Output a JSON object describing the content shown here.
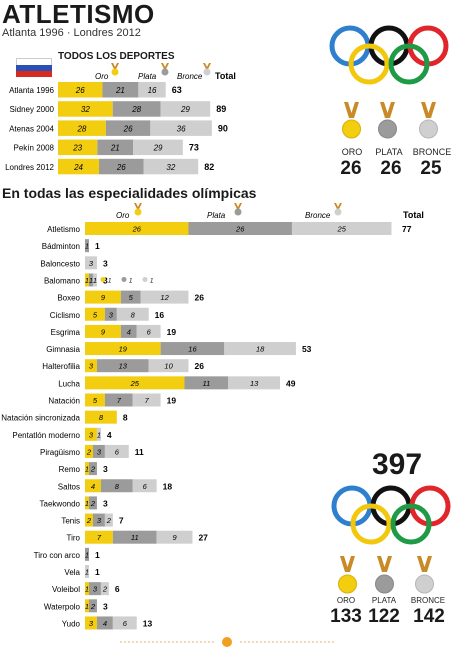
{
  "header": {
    "title": "ATLETISMO",
    "subtitle": "Atlanta 1996 · Londres 2012"
  },
  "colors": {
    "gold": "#f2cd10",
    "silver": "#9b9b9b",
    "bronze": "#cfcfcf",
    "medal_ribbon": "#c98a28"
  },
  "top": {
    "title": "TODOS LOS DEPORTES",
    "legend": {
      "oro": "Oro",
      "plata": "Plata",
      "bronce": "Bronce",
      "total": "Total"
    }
  },
  "medals_summary": {
    "oro_label": "ORO",
    "plata_label": "PLATA",
    "bronce_label": "BRONCE",
    "oro": "26",
    "plata": "26",
    "bronce": "25"
  },
  "section2": {
    "title": "En todas las especialidades olímpicas",
    "legend": {
      "oro": "Oro",
      "plata": "Plata",
      "bronce": "Bronce",
      "total": "Total"
    },
    "balonmano_legend": [
      "1",
      "1",
      "1"
    ]
  },
  "totals": {
    "grand_total": "397",
    "oro_label": "ORO",
    "plata_label": "PLATA",
    "bronce_label": "BRONCE",
    "oro": "133",
    "plata": "122",
    "bronce": "142"
  },
  "chart_data": [
    {
      "type": "bar",
      "title": "TODOS LOS DEPORTES",
      "categories": [
        "Atlanta 1996",
        "Sidney 2000",
        "Atenas 2004",
        "Pekín 2008",
        "Londres 2012"
      ],
      "series": [
        {
          "name": "Oro",
          "values": [
            26,
            32,
            28,
            23,
            24
          ]
        },
        {
          "name": "Plata",
          "values": [
            21,
            28,
            26,
            21,
            26
          ]
        },
        {
          "name": "Bronce",
          "values": [
            16,
            29,
            36,
            29,
            32
          ]
        }
      ],
      "totals": [
        63,
        89,
        90,
        73,
        82
      ]
    },
    {
      "type": "bar",
      "title": "En todas las especialidades olímpicas",
      "categories": [
        "Atletismo",
        "Bádminton",
        "Baloncesto",
        "Balomano",
        "Boxeo",
        "Ciclismo",
        "Esgrima",
        "Gimnasia",
        "Halterofilia",
        "Lucha",
        "Natación",
        "Natación sincronizada",
        "Pentatlón moderno",
        "Piragüismo",
        "Remo",
        "Saltos",
        "Taekwondo",
        "Tenis",
        "Tiro",
        "Tiro con arco",
        "Vela",
        "Voleibol",
        "Waterpolo",
        "Yudo"
      ],
      "series": [
        {
          "name": "Oro",
          "values": [
            26,
            0,
            0,
            1,
            9,
            5,
            9,
            19,
            3,
            25,
            5,
            8,
            3,
            2,
            1,
            4,
            1,
            2,
            7,
            0,
            0,
            1,
            1,
            3
          ]
        },
        {
          "name": "Plata",
          "values": [
            26,
            1,
            0,
            1,
            5,
            3,
            4,
            16,
            13,
            11,
            7,
            0,
            0,
            3,
            2,
            8,
            2,
            3,
            11,
            1,
            0,
            3,
            2,
            4
          ]
        },
        {
          "name": "Bronce",
          "values": [
            25,
            0,
            3,
            1,
            12,
            8,
            6,
            18,
            10,
            13,
            7,
            0,
            1,
            6,
            0,
            6,
            0,
            2,
            9,
            0,
            1,
            2,
            0,
            6
          ]
        }
      ],
      "totals": [
        77,
        1,
        3,
        3,
        26,
        16,
        19,
        53,
        26,
        49,
        19,
        8,
        4,
        11,
        3,
        18,
        3,
        7,
        27,
        1,
        1,
        6,
        3,
        13
      ]
    }
  ]
}
